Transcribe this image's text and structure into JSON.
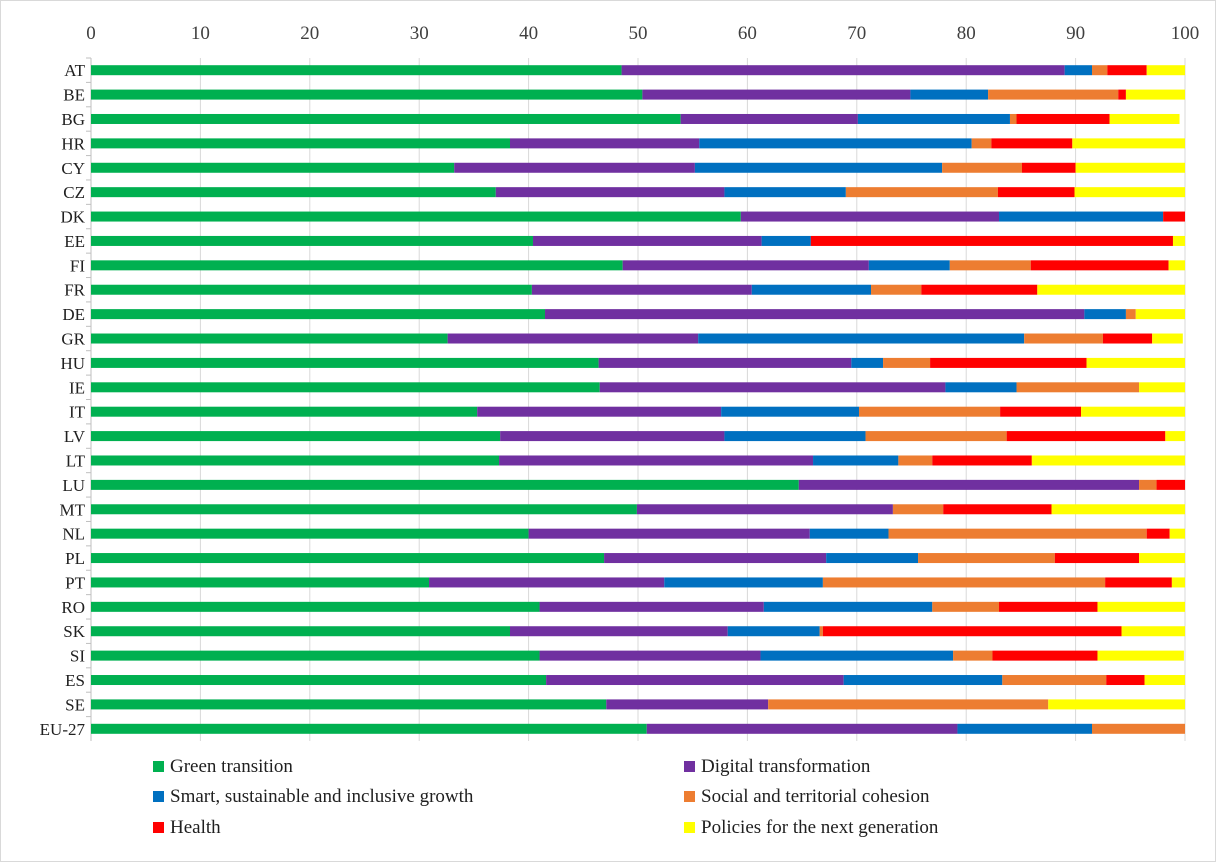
{
  "chart_data": {
    "type": "bar",
    "orientation": "horizontal",
    "stacked": true,
    "xlim": [
      0,
      100
    ],
    "x_ticks": [
      "0",
      "10",
      "20",
      "30",
      "40",
      "50",
      "60",
      "70",
      "80",
      "90",
      "100"
    ],
    "x_axis_position": "top",
    "grid": true,
    "legend_position": "bottom",
    "categories": [
      "AT",
      "BE",
      "BG",
      "HR",
      "CY",
      "CZ",
      "DK",
      "EE",
      "FI",
      "FR",
      "DE",
      "GR",
      "HU",
      "IE",
      "IT",
      "LV",
      "LT",
      "LU",
      "MT",
      "NL",
      "PL",
      "PT",
      "RO",
      "SK",
      "SI",
      "ES",
      "SE",
      "EU-27"
    ],
    "series": [
      {
        "name": "Green transition",
        "color": "#00b050",
        "values": [
          48.5,
          50.4,
          53.9,
          38.3,
          33.2,
          37.0,
          59.4,
          40.4,
          48.6,
          40.3,
          41.5,
          32.6,
          46.4,
          46.5,
          35.3,
          37.4,
          37.3,
          64.7,
          49.9,
          40.0,
          46.9,
          30.9,
          41.0,
          38.3,
          41.0,
          41.6,
          47.1,
          50.8
        ]
      },
      {
        "name": "Digital transformation",
        "color": "#7030a0",
        "values": [
          40.5,
          24.5,
          16.2,
          17.3,
          22.0,
          20.9,
          23.6,
          20.9,
          22.5,
          20.1,
          49.3,
          22.9,
          23.1,
          31.6,
          22.3,
          20.5,
          28.7,
          31.1,
          23.4,
          25.7,
          20.3,
          21.5,
          20.5,
          19.9,
          20.2,
          27.2,
          14.8,
          28.4
        ]
      },
      {
        "name": "Smart, sustainable and inclusive growth",
        "color": "#0070c0",
        "values": [
          2.5,
          7.1,
          13.9,
          24.9,
          22.6,
          11.1,
          15.0,
          4.5,
          7.4,
          10.9,
          3.8,
          29.8,
          2.9,
          6.5,
          12.6,
          12.9,
          7.8,
          0.0,
          0.0,
          7.2,
          8.4,
          14.5,
          15.4,
          8.4,
          17.6,
          14.5,
          0.0,
          12.3
        ]
      },
      {
        "name": "Social and territorial cohesion",
        "color": "#ed7d31",
        "values": [
          1.4,
          11.9,
          0.6,
          1.8,
          7.3,
          13.9,
          0.0,
          0.0,
          7.4,
          4.6,
          0.9,
          7.2,
          4.3,
          11.2,
          12.9,
          12.9,
          3.1,
          1.6,
          4.6,
          23.6,
          12.5,
          25.8,
          6.1,
          0.3,
          3.6,
          9.5,
          25.6,
          8.5
        ]
      },
      {
        "name": "Health",
        "color": "#ff0000",
        "values": [
          3.6,
          0.7,
          8.5,
          7.4,
          4.9,
          7.0,
          2.0,
          33.1,
          12.6,
          10.6,
          0.0,
          4.5,
          14.3,
          0.0,
          7.4,
          14.5,
          9.1,
          2.6,
          9.9,
          2.1,
          7.7,
          6.1,
          9.0,
          27.3,
          9.6,
          3.5,
          0.0,
          0.0
        ]
      },
      {
        "name": "Policies for the next generation",
        "color": "#ffff00",
        "values": [
          3.5,
          5.4,
          6.4,
          10.3,
          10.0,
          10.1,
          0.0,
          1.1,
          1.5,
          13.5,
          4.5,
          2.8,
          9.0,
          4.2,
          9.5,
          1.8,
          14.0,
          0.0,
          12.2,
          1.4,
          4.2,
          1.2,
          8.0,
          5.8,
          7.9,
          3.7,
          12.5,
          0.0
        ]
      }
    ]
  }
}
